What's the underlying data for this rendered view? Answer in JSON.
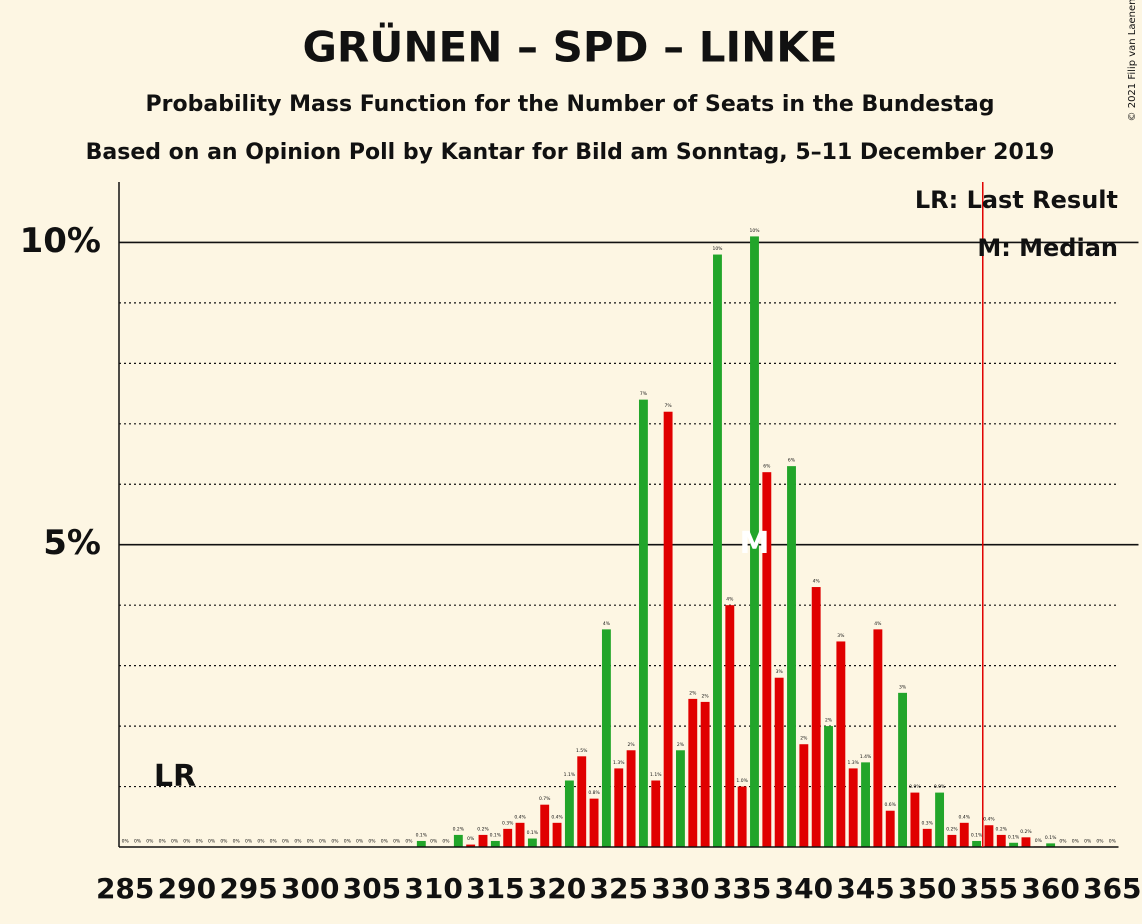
{
  "chart_data": {
    "type": "bar",
    "title": "GRÜNEN – SPD – LINKE",
    "subtitle": "Probability Mass Function for the Number of Seats in the Bundestag",
    "source": "Based on an Opinion Poll by Kantar for Bild am Sonntag, 5–11 December 2019",
    "copyright": "© 2021 Filip van Laenen",
    "legend_lr": "LR: Last Result",
    "legend_median": "M: Median",
    "lr_marker": "LR",
    "median_marker": "M",
    "last_result": 355,
    "median": 336,
    "lr_color": "#e00000",
    "x": [
      285,
      286,
      287,
      288,
      289,
      290,
      291,
      292,
      293,
      294,
      295,
      296,
      297,
      298,
      299,
      300,
      301,
      302,
      303,
      304,
      305,
      306,
      307,
      308,
      309,
      310,
      311,
      312,
      313,
      314,
      315,
      316,
      317,
      318,
      319,
      320,
      321,
      322,
      323,
      324,
      325,
      326,
      327,
      328,
      329,
      330,
      331,
      332,
      333,
      334,
      335,
      336,
      337,
      338,
      339,
      340,
      341,
      342,
      343,
      344,
      345,
      346,
      347,
      348,
      349,
      350,
      351,
      352,
      353,
      354,
      355,
      356,
      357,
      358,
      359,
      360,
      361,
      362,
      363,
      364,
      365
    ],
    "values": [
      0,
      0,
      0,
      0,
      0,
      0,
      0,
      0,
      0,
      0,
      0,
      0,
      0,
      0,
      0,
      0,
      0,
      0,
      0,
      0,
      0,
      0,
      0,
      0,
      0.1,
      0,
      0,
      0.2,
      0.04,
      0.2,
      0.1,
      0.3,
      0.4,
      0.14,
      0.7,
      0.4,
      1.1,
      1.5,
      0.8,
      3.6,
      1.3,
      1.6,
      7.4,
      1.1,
      7.2,
      1.6,
      2.45,
      2.4,
      9.8,
      4.0,
      1.0,
      10.1,
      6.2,
      2.8,
      6.3,
      1.7,
      4.3,
      2.0,
      3.4,
      1.3,
      1.4,
      3.6,
      0.6,
      2.55,
      0.9,
      0.3,
      0.9,
      0.2,
      0.4,
      0.1,
      0.36,
      0.2,
      0.07,
      0.16,
      0.01,
      0.06,
      0,
      0,
      0,
      0,
      0
    ],
    "value_labels": [
      "0%",
      "0%",
      "0%",
      "0%",
      "0%",
      "0%",
      "0%",
      "0%",
      "0%",
      "0%",
      "0%",
      "0%",
      "0%",
      "0%",
      "0%",
      "0%",
      "0%",
      "0%",
      "0%",
      "0%",
      "0%",
      "0%",
      "0%",
      "0%",
      "0.1%",
      "0%",
      "0%",
      "0.2%",
      "0%",
      "0.2%",
      "0.1%",
      "0.3%",
      "0.4%",
      "0.1%",
      "0.7%",
      "0.4%",
      "1.1%",
      "1.5%",
      "0.8%",
      "4%",
      "1.3%",
      "2%",
      "7%",
      "1.1%",
      "7%",
      "2%",
      "2%",
      "2%",
      "10%",
      "4%",
      "1.0%",
      "10%",
      "6%",
      "3%",
      "6%",
      "2%",
      "4%",
      "2%",
      "3%",
      "1.3%",
      "1.4%",
      "4%",
      "0.6%",
      "3%",
      "0.9%",
      "0.3%",
      "0.9%",
      "0.2%",
      "0.4%",
      "0.1%",
      "0.4%",
      "0.2%",
      "0.1%",
      "0.2%",
      "0%",
      "0.1%",
      "0%",
      "0%",
      "0%",
      "0%",
      "0%"
    ],
    "colors": [
      "#22a52a",
      "#e00000",
      "#e00000",
      "#22a52a",
      "#e00000",
      "#e00000",
      "#22a52a",
      "#e00000",
      "#e00000",
      "#22a52a",
      "#e00000",
      "#e00000",
      "#22a52a",
      "#e00000",
      "#e00000",
      "#22a52a",
      "#e00000",
      "#e00000",
      "#22a52a",
      "#e00000",
      "#e00000",
      "#22a52a",
      "#e00000",
      "#e00000",
      "#22a52a",
      "#e00000",
      "#e00000",
      "#22a52a",
      "#e00000",
      "#e00000",
      "#22a52a",
      "#e00000",
      "#e00000",
      "#22a52a",
      "#e00000",
      "#e00000",
      "#22a52a",
      "#e00000",
      "#e00000",
      "#22a52a",
      "#e00000",
      "#e00000",
      "#22a52a",
      "#e00000",
      "#e00000",
      "#22a52a",
      "#e00000",
      "#e00000",
      "#22a52a",
      "#e00000",
      "#e00000",
      "#22a52a",
      "#e00000",
      "#e00000",
      "#22a52a",
      "#e00000",
      "#e00000",
      "#22a52a",
      "#e00000",
      "#e00000",
      "#22a52a",
      "#e00000",
      "#e00000",
      "#22a52a",
      "#e00000",
      "#e00000",
      "#22a52a",
      "#e00000",
      "#e00000",
      "#22a52a",
      "#e00000",
      "#e00000",
      "#22a52a",
      "#e00000",
      "#e00000",
      "#22a52a",
      "#e00000",
      "#e00000",
      "#22a52a",
      "#e00000",
      "#e00000"
    ],
    "xlim": [
      284.5,
      365.5
    ],
    "xticks": [
      285,
      290,
      295,
      300,
      305,
      310,
      315,
      320,
      325,
      330,
      335,
      340,
      345,
      350,
      355,
      360,
      365
    ],
    "ylim": [
      0,
      11
    ],
    "yticks": [
      {
        "value": 5,
        "label": "5%"
      },
      {
        "value": 10,
        "label": "10%"
      }
    ],
    "minor_yticks": [
      1,
      2,
      3,
      4,
      6,
      7,
      8,
      9
    ]
  }
}
